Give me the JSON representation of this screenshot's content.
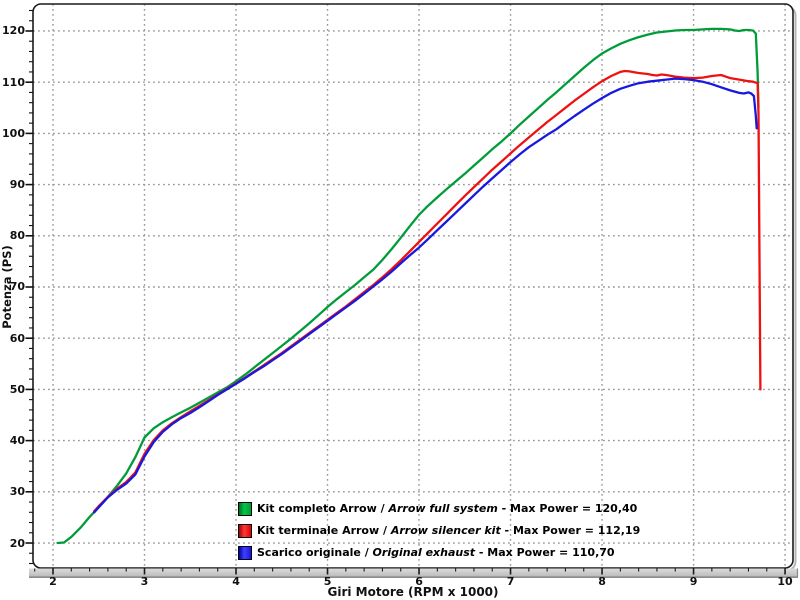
{
  "chart_data": {
    "type": "line",
    "title": "",
    "xlabel": "Giri Motore (RPM x 1000)",
    "ylabel": "Potenza (PS)",
    "xlim": [
      1.7814,
      10.0868
    ],
    "ylim": [
      15.12,
      125.27
    ],
    "x_major_ticks": [
      2,
      3,
      4,
      5,
      6,
      7,
      8,
      9,
      10
    ],
    "x_minor_step": 0.2,
    "y_major_ticks": [
      20,
      30,
      40,
      50,
      60,
      70,
      80,
      90,
      100,
      110,
      120
    ],
    "y_minor_step": 2,
    "grid_style": "dotted",
    "grid_color": "#999999",
    "legend_position": "bottom-center-inside",
    "series": [
      {
        "id": "kit-completo-arrow",
        "color": "#009C3A",
        "max_power": "120,40",
        "legend": {
          "label_it": "Kit completo Arrow",
          "sep": " / ",
          "label_en": "Arrow full system",
          "tail": " - Max Power = 120,40"
        },
        "points": [
          [
            2.05,
            20
          ],
          [
            2.12,
            20.1
          ],
          [
            2.2,
            21.2
          ],
          [
            2.3,
            23
          ],
          [
            2.4,
            25.1
          ],
          [
            2.5,
            27
          ],
          [
            2.6,
            29
          ],
          [
            2.7,
            31.2
          ],
          [
            2.8,
            33.6
          ],
          [
            2.9,
            36.8
          ],
          [
            3.0,
            40.6
          ],
          [
            3.1,
            42.4
          ],
          [
            3.2,
            43.6
          ],
          [
            3.3,
            44.6
          ],
          [
            3.4,
            45.5
          ],
          [
            3.5,
            46.4
          ],
          [
            3.6,
            47.4
          ],
          [
            3.7,
            48.4
          ],
          [
            3.8,
            49.4
          ],
          [
            3.9,
            50.4
          ],
          [
            4.0,
            51.6
          ],
          [
            4.1,
            52.9
          ],
          [
            4.2,
            54.3
          ],
          [
            4.3,
            55.7
          ],
          [
            4.4,
            57.1
          ],
          [
            4.5,
            58.5
          ],
          [
            4.6,
            59.9
          ],
          [
            4.7,
            61.4
          ],
          [
            4.8,
            62.9
          ],
          [
            4.9,
            64.5
          ],
          [
            5.0,
            66.1
          ],
          [
            5.1,
            67.6
          ],
          [
            5.2,
            69
          ],
          [
            5.3,
            70.4
          ],
          [
            5.4,
            71.9
          ],
          [
            5.5,
            73.4
          ],
          [
            5.6,
            75.3
          ],
          [
            5.7,
            77.4
          ],
          [
            5.8,
            79.6
          ],
          [
            5.9,
            81.9
          ],
          [
            6.0,
            84.1
          ],
          [
            6.1,
            85.9
          ],
          [
            6.2,
            87.5
          ],
          [
            6.3,
            89.1
          ],
          [
            6.4,
            90.6
          ],
          [
            6.5,
            92.1
          ],
          [
            6.6,
            93.7
          ],
          [
            6.7,
            95.3
          ],
          [
            6.8,
            96.9
          ],
          [
            6.9,
            98.4
          ],
          [
            7.0,
            100
          ],
          [
            7.1,
            101.7
          ],
          [
            7.2,
            103.3
          ],
          [
            7.3,
            104.9
          ],
          [
            7.4,
            106.5
          ],
          [
            7.5,
            108
          ],
          [
            7.6,
            109.6
          ],
          [
            7.7,
            111.2
          ],
          [
            7.8,
            112.8
          ],
          [
            7.9,
            114.3
          ],
          [
            8.0,
            115.6
          ],
          [
            8.1,
            116.6
          ],
          [
            8.2,
            117.5
          ],
          [
            8.3,
            118.2
          ],
          [
            8.4,
            118.8
          ],
          [
            8.5,
            119.3
          ],
          [
            8.6,
            119.7
          ],
          [
            8.7,
            119.9
          ],
          [
            8.8,
            120.1
          ],
          [
            8.9,
            120.2
          ],
          [
            9.0,
            120.2
          ],
          [
            9.1,
            120.3
          ],
          [
            9.2,
            120.4
          ],
          [
            9.3,
            120.4
          ],
          [
            9.4,
            120.3
          ],
          [
            9.45,
            120.1
          ],
          [
            9.5,
            120.0
          ],
          [
            9.55,
            120.2
          ],
          [
            9.6,
            120.2
          ],
          [
            9.65,
            120.1
          ],
          [
            9.68,
            119.5
          ],
          [
            9.7,
            112
          ],
          [
            9.71,
            105
          ]
        ]
      },
      {
        "id": "kit-terminale-arrow",
        "color": "#EE1111",
        "max_power": "112,19",
        "legend": {
          "label_it": "Kit terminale Arrow",
          "sep": " / ",
          "label_en": "Arrow silencer kit",
          "tail": " - Max Power = 112,19"
        },
        "points": [
          [
            2.45,
            26.2
          ],
          [
            2.5,
            27.2
          ],
          [
            2.6,
            29
          ],
          [
            2.7,
            30.6
          ],
          [
            2.8,
            31.9
          ],
          [
            2.9,
            33.8
          ],
          [
            3.0,
            37.4
          ],
          [
            3.1,
            40.1
          ],
          [
            3.2,
            42
          ],
          [
            3.3,
            43.4
          ],
          [
            3.4,
            44.6
          ],
          [
            3.5,
            45.7
          ],
          [
            3.6,
            46.8
          ],
          [
            3.7,
            47.9
          ],
          [
            3.8,
            49
          ],
          [
            3.9,
            50.1
          ],
          [
            4.0,
            51.2
          ],
          [
            4.1,
            52.3
          ],
          [
            4.2,
            53.5
          ],
          [
            4.3,
            54.7
          ],
          [
            4.4,
            55.9
          ],
          [
            4.5,
            57.1
          ],
          [
            4.6,
            58.4
          ],
          [
            4.7,
            59.7
          ],
          [
            4.8,
            61
          ],
          [
            4.9,
            62.3
          ],
          [
            5.0,
            63.6
          ],
          [
            5.1,
            64.9
          ],
          [
            5.2,
            66.2
          ],
          [
            5.3,
            67.6
          ],
          [
            5.4,
            69
          ],
          [
            5.5,
            70.4
          ],
          [
            5.6,
            71.9
          ],
          [
            5.7,
            73.5
          ],
          [
            5.8,
            75.2
          ],
          [
            5.9,
            77
          ],
          [
            6.0,
            78.8
          ],
          [
            6.1,
            80.6
          ],
          [
            6.2,
            82.4
          ],
          [
            6.3,
            84.2
          ],
          [
            6.4,
            86
          ],
          [
            6.5,
            87.8
          ],
          [
            6.6,
            89.5
          ],
          [
            6.7,
            91.2
          ],
          [
            6.8,
            92.9
          ],
          [
            6.9,
            94.5
          ],
          [
            7.0,
            96.1
          ],
          [
            7.1,
            97.7
          ],
          [
            7.2,
            99.2
          ],
          [
            7.3,
            100.7
          ],
          [
            7.4,
            102.2
          ],
          [
            7.5,
            103.6
          ],
          [
            7.6,
            105
          ],
          [
            7.7,
            106.4
          ],
          [
            7.8,
            107.7
          ],
          [
            7.9,
            109
          ],
          [
            8.0,
            110.2
          ],
          [
            8.1,
            111.2
          ],
          [
            8.2,
            112
          ],
          [
            8.25,
            112.19
          ],
          [
            8.3,
            112.1
          ],
          [
            8.4,
            111.8
          ],
          [
            8.5,
            111.6
          ],
          [
            8.55,
            111.4
          ],
          [
            8.6,
            111.3
          ],
          [
            8.65,
            111.5
          ],
          [
            8.7,
            111.4
          ],
          [
            8.8,
            111.1
          ],
          [
            8.9,
            110.9
          ],
          [
            9.0,
            110.8
          ],
          [
            9.1,
            110.9
          ],
          [
            9.2,
            111.2
          ],
          [
            9.3,
            111.4
          ],
          [
            9.35,
            111.1
          ],
          [
            9.4,
            110.8
          ],
          [
            9.5,
            110.5
          ],
          [
            9.6,
            110.2
          ],
          [
            9.65,
            110.1
          ],
          [
            9.7,
            109.8
          ],
          [
            9.71,
            104
          ],
          [
            9.72,
            78
          ],
          [
            9.73,
            50
          ]
        ]
      },
      {
        "id": "scarico-originale",
        "color": "#1818E0",
        "max_power": "110,70",
        "legend": {
          "label_it": "Scarico originale",
          "sep": " / ",
          "label_en": "Original exhaust",
          "tail": " - Max Power = 110,70"
        },
        "points": [
          [
            2.45,
            26
          ],
          [
            2.5,
            27
          ],
          [
            2.6,
            28.9
          ],
          [
            2.7,
            30.4
          ],
          [
            2.8,
            31.6
          ],
          [
            2.9,
            33.4
          ],
          [
            3.0,
            36.9
          ],
          [
            3.1,
            39.7
          ],
          [
            3.2,
            41.7
          ],
          [
            3.3,
            43.2
          ],
          [
            3.4,
            44.4
          ],
          [
            3.5,
            45.4
          ],
          [
            3.6,
            46.5
          ],
          [
            3.7,
            47.7
          ],
          [
            3.8,
            48.9
          ],
          [
            3.9,
            50
          ],
          [
            4.0,
            51.1
          ],
          [
            4.1,
            52.2
          ],
          [
            4.2,
            53.4
          ],
          [
            4.3,
            54.5
          ],
          [
            4.4,
            55.7
          ],
          [
            4.5,
            56.9
          ],
          [
            4.6,
            58.2
          ],
          [
            4.7,
            59.5
          ],
          [
            4.8,
            60.8
          ],
          [
            4.9,
            62.1
          ],
          [
            5.0,
            63.4
          ],
          [
            5.1,
            64.7
          ],
          [
            5.2,
            66
          ],
          [
            5.3,
            67.3
          ],
          [
            5.4,
            68.7
          ],
          [
            5.5,
            70.1
          ],
          [
            5.6,
            71.5
          ],
          [
            5.7,
            73
          ],
          [
            5.8,
            74.6
          ],
          [
            5.9,
            76.2
          ],
          [
            6.0,
            77.7
          ],
          [
            6.1,
            79.4
          ],
          [
            6.2,
            81.1
          ],
          [
            6.3,
            82.8
          ],
          [
            6.4,
            84.5
          ],
          [
            6.5,
            86.2
          ],
          [
            6.6,
            87.9
          ],
          [
            6.7,
            89.6
          ],
          [
            6.8,
            91.2
          ],
          [
            6.9,
            92.8
          ],
          [
            7.0,
            94.4
          ],
          [
            7.1,
            95.9
          ],
          [
            7.2,
            97.3
          ],
          [
            7.3,
            98.5
          ],
          [
            7.4,
            99.7
          ],
          [
            7.5,
            100.8
          ],
          [
            7.6,
            102.1
          ],
          [
            7.7,
            103.4
          ],
          [
            7.8,
            104.6
          ],
          [
            7.9,
            105.8
          ],
          [
            8.0,
            106.9
          ],
          [
            8.1,
            107.9
          ],
          [
            8.2,
            108.7
          ],
          [
            8.3,
            109.3
          ],
          [
            8.4,
            109.8
          ],
          [
            8.5,
            110.1
          ],
          [
            8.6,
            110.3
          ],
          [
            8.7,
            110.5
          ],
          [
            8.8,
            110.7
          ],
          [
            8.9,
            110.6
          ],
          [
            9.0,
            110.4
          ],
          [
            9.1,
            110.1
          ],
          [
            9.2,
            109.6
          ],
          [
            9.3,
            109
          ],
          [
            9.4,
            108.4
          ],
          [
            9.5,
            107.9
          ],
          [
            9.55,
            107.8
          ],
          [
            9.6,
            108
          ],
          [
            9.63,
            107.8
          ],
          [
            9.66,
            107.3
          ],
          [
            9.68,
            103.5
          ],
          [
            9.69,
            101
          ]
        ]
      }
    ]
  }
}
